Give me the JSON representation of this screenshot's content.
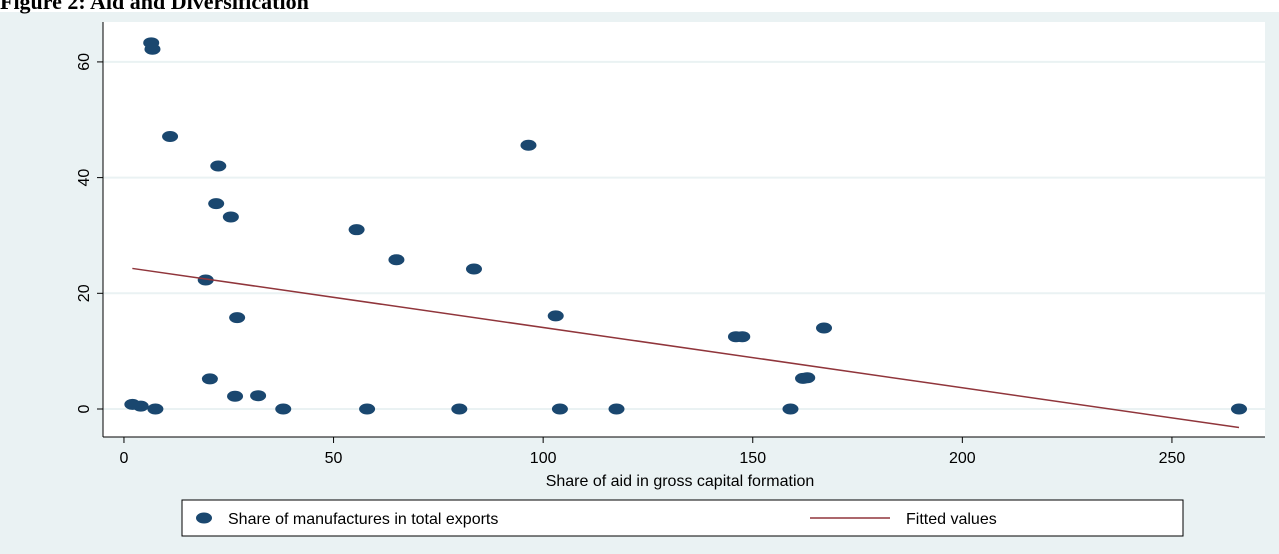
{
  "chart_data": {
    "type": "scatter",
    "title": "Figure 2: Aid and Diversification",
    "x_label": "Share of aid in gross capital formation",
    "xlim": [
      -5,
      272.2
    ],
    "ylim": [
      -4.84,
      66.9
    ],
    "xticks": [
      0,
      50,
      100,
      150,
      200,
      250
    ],
    "yticks": [
      0,
      20,
      40,
      60
    ],
    "grid": true,
    "legend": "bottom",
    "series": [
      {
        "name": "Share of manufactures in total exports",
        "color": "#1a476f",
        "type": "scatter",
        "x": [
          6.5,
          6.8,
          11,
          22.5,
          22,
          25.5,
          55.5,
          96.5,
          65,
          83.5,
          19.5,
          27,
          103,
          146,
          147.5,
          167,
          20.5,
          162,
          163,
          26.5,
          32,
          2,
          4,
          7.5,
          38,
          58,
          80,
          104,
          117.5,
          159,
          266
        ],
        "values": [
          63.3,
          62.2,
          47.1,
          42,
          35.5,
          33.2,
          31,
          45.6,
          25.8,
          24.2,
          22.3,
          15.8,
          16.1,
          12.5,
          12.5,
          14,
          5.2,
          5.3,
          5.4,
          2.2,
          2.3,
          0.8,
          0.5,
          0,
          0,
          0,
          0,
          0,
          0,
          0,
          0
        ]
      },
      {
        "name": "Fitted values",
        "color": "#90353b",
        "type": "line",
        "x": [
          2,
          266
        ],
        "values": [
          24.3,
          -3.2
        ]
      }
    ]
  }
}
